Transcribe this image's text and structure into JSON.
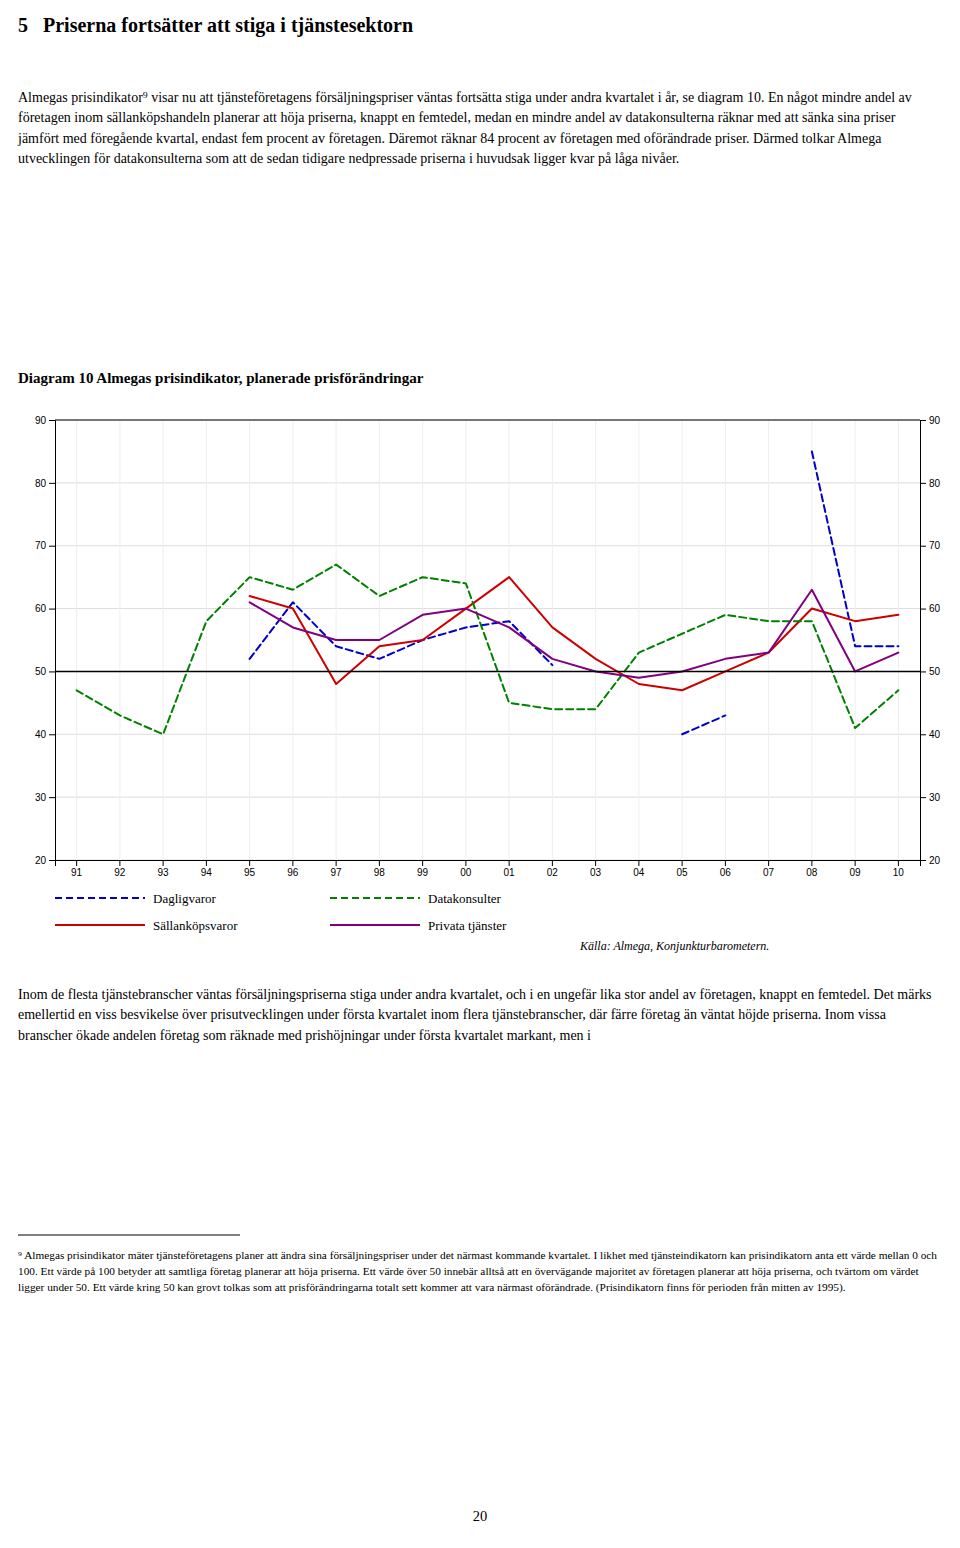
{
  "page": {
    "heading": "5   Priserna fortsätter att stiga i tjänstesektorn",
    "paragraphs": [
      "Almegas prisindikator⁹ visar nu att tjänsteföretagens försäljningspriser väntas fortsätta stiga under andra kvartalet i år, se diagram 10. En något mindre andel av företagen inom sällanköpshandeln planerar att höja priserna, knappt en femtedel, medan en mindre andel av datakonsulterna räknar med att sänka sina priser jämfört med föregående kvartal, endast fem procent av företagen. Däremot räknar 84 procent av företagen med oförändrade priser. Därmed tolkar Almega utvecklingen för datakonsulterna som att de sedan tidigare nedpressade priserna i huvudsak ligger kvar på låga nivåer.",
      "Inom de flesta tjänstebranscher väntas försäljningspriserna stiga under andra kvartalet, och i en ungefär lika stor andel av företagen, knappt en femtedel. Det märks emellertid en viss besvikelse över prisutvecklingen under första kvartalet inom flera tjänstebranscher, där färre företag än väntat höjde priserna. Inom vissa branscher ökade andelen företag som räknade med prishöjningar under första kvartalet markant, men i"
    ],
    "footnote": "⁹ Almegas prisindikator mäter tjänsteföretagens planer att ändra sina försäljningspriser under det närmast kommande kvartalet. I likhet med tjänsteindikatorn kan prisindikatorn anta ett värde mellan 0 och 100. Ett värde på 100 betyder att samtliga företag planerar att höja priserna. Ett värde över 50 innebär alltså att en övervägande majoritet av företagen planerar att höja priserna, och tvärtom om värdet ligger under 50. Ett värde kring 50 kan grovt tolkas som att prisförändringarna totalt sett kommer att vara närmast oförändrade. (Prisindikatorn finns för perioden från mitten av 1995).",
    "page_number": "20"
  },
  "chart_data": {
    "type": "line",
    "title": "Diagram 10 Almegas prisindikator, planerade prisförändringar",
    "source": "Källa: Almega, Konjunkturbarometern.",
    "categories": [
      "91",
      "92",
      "93",
      "94",
      "95",
      "96",
      "97",
      "98",
      "99",
      "00",
      "01",
      "02",
      "03",
      "04",
      "05",
      "06",
      "07",
      "08",
      "09",
      "10"
    ],
    "series": [
      {
        "name": "Dagligvaror",
        "color": "#0000CC",
        "line_style": "dashed",
        "values": [
          null,
          null,
          null,
          null,
          52,
          61,
          54,
          52,
          55,
          57,
          58,
          51,
          null,
          null,
          40,
          43,
          null,
          85,
          54,
          54
        ]
      },
      {
        "name": "Sällanköpsvaror",
        "color": "#CC0000",
        "line_style": "solid",
        "values": [
          null,
          null,
          null,
          null,
          62,
          60,
          48,
          54,
          55,
          60,
          65,
          57,
          52,
          48,
          47,
          50,
          53,
          60,
          58,
          59
        ]
      },
      {
        "name": "Datakonsulter",
        "color": "#008000",
        "line_style": "dashed",
        "values": [
          47,
          43,
          40,
          58,
          65,
          63,
          67,
          62,
          65,
          64,
          45,
          44,
          44,
          53,
          56,
          59,
          58,
          58,
          41,
          47
        ]
      },
      {
        "name": "Privata tjänster",
        "color": "#800080",
        "line_style": "solid",
        "values": [
          null,
          null,
          null,
          null,
          61,
          57,
          55,
          55,
          59,
          60,
          57,
          52,
          50,
          49,
          50,
          52,
          53,
          63,
          50,
          53
        ]
      }
    ],
    "ylim": [
      20,
      90
    ],
    "yticks": [
      20,
      30,
      40,
      50,
      60,
      70,
      80,
      90
    ],
    "y2lim": [
      20,
      90
    ],
    "y2ticks": [
      20,
      30,
      40,
      50,
      60,
      70,
      80,
      90
    ],
    "hline": 50,
    "grid": true,
    "legend": "bottom"
  }
}
